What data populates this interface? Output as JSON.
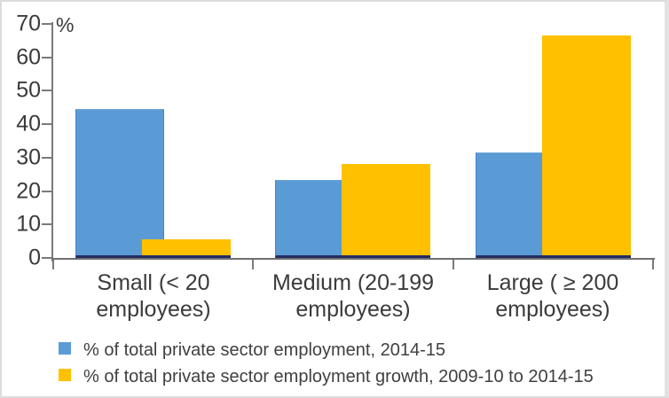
{
  "chart_data": {
    "type": "bar",
    "title": "",
    "ylabel": "%",
    "xlabel": "",
    "categories": [
      "Small (< 20\nemployees)",
      "Medium (20-199\nemployees)",
      "Large ( ≥ 200\nemployees)"
    ],
    "series": [
      {
        "name": "% of total private sector employment, 2014-15",
        "color": "#5B9BD5",
        "values": [
          44.5,
          23.3,
          31.5
        ]
      },
      {
        "name": "% of total private sector employment growth, 2009-10 to 2014-15",
        "color": "#FFC000",
        "values": [
          5.5,
          28.2,
          66.5
        ]
      }
    ],
    "ylim": [
      0,
      70
    ],
    "yticks": [
      0,
      10,
      20,
      30,
      40,
      50,
      60,
      70
    ],
    "grid": false,
    "legend_position": "bottom-left",
    "bar_overlap_pct": 25
  },
  "colors": {
    "axis": "#7a7a7a",
    "text": "#3f3f3f",
    "bar_base_edge": "#232c62",
    "frame_border": "#dcdcdc",
    "background": "#ffffff"
  }
}
